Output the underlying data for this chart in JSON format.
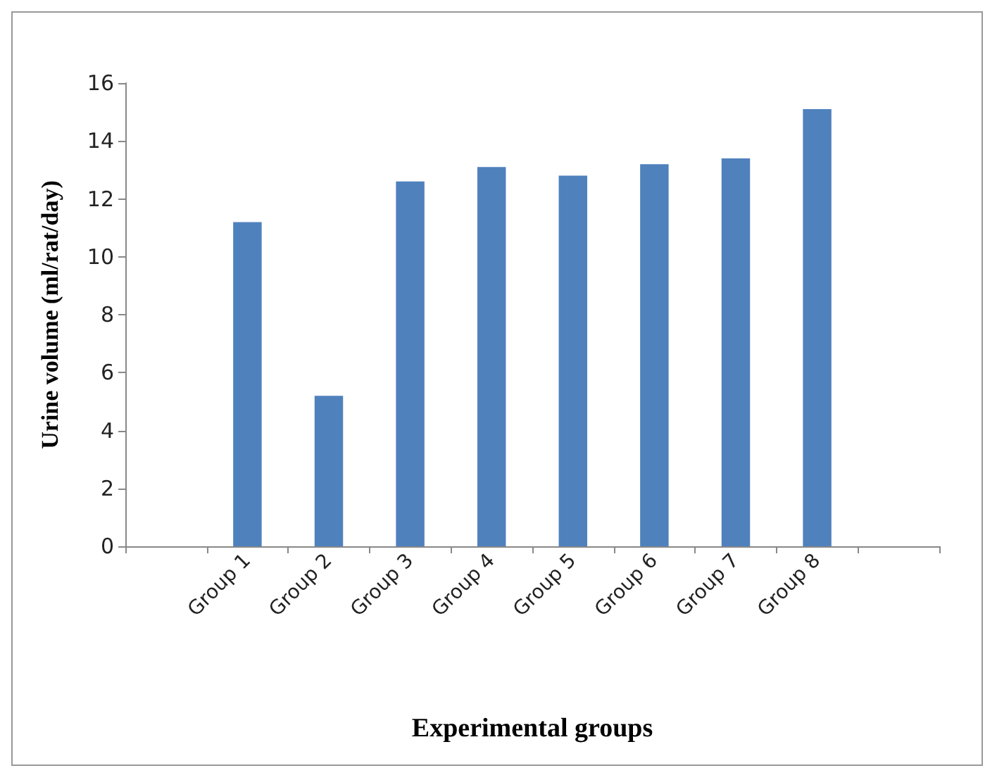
{
  "chart_data": {
    "type": "bar",
    "xlabel": "Experimental groups",
    "ylabel": "Urine volume (ml/rat/day)",
    "categories": [
      null,
      "Group 1",
      "Group 2",
      "Group 3",
      "Group 4",
      "Group 5",
      "Group 6",
      "Group 7",
      "Group 8",
      null
    ],
    "values": [
      null,
      11.2,
      5.2,
      12.6,
      13.1,
      12.8,
      13.2,
      13.4,
      15.1,
      null
    ],
    "color": "#4f81bd",
    "ylim": [
      0,
      16
    ],
    "yticks": [
      0,
      2,
      4,
      6,
      8,
      10,
      12,
      14,
      16
    ],
    "grid": false
  }
}
